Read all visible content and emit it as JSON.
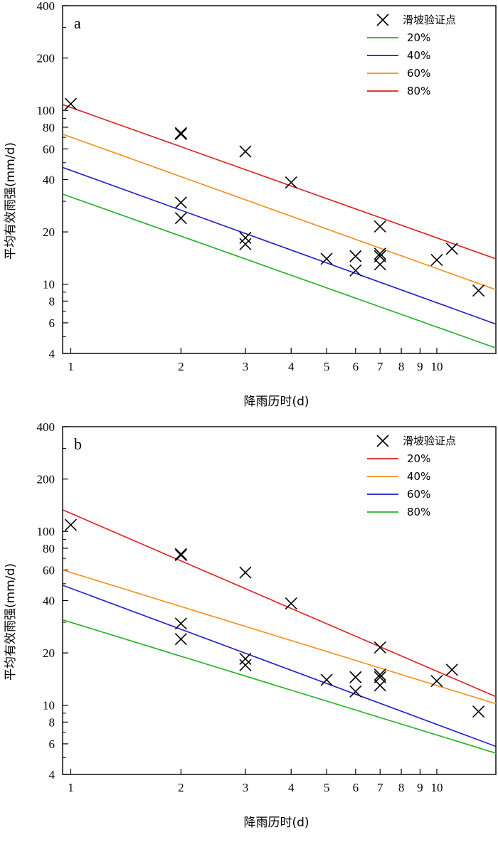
{
  "chart_data": [
    {
      "type": "line",
      "panel_label": "a",
      "xlabel": "降雨历时(d)",
      "ylabel": "平均有效雨强(mm/d)",
      "xscale": "log",
      "yscale": "log",
      "xlim": [
        0.95,
        14.5
      ],
      "ylim": [
        4,
        400
      ],
      "xticks": [
        1,
        2,
        3,
        4,
        5,
        6,
        7,
        8,
        9,
        10
      ],
      "xtick_labels": [
        "1",
        "2",
        "3",
        "4",
        "5",
        "6",
        "7",
        "8",
        "9",
        "10"
      ],
      "yticks": [
        4,
        6,
        8,
        10,
        20,
        40,
        60,
        80,
        100,
        200,
        400
      ],
      "ytick_labels": [
        "4",
        "6",
        "8",
        "10",
        "20",
        "40",
        "60",
        "80",
        "100",
        "200",
        "400"
      ],
      "legend_position": "top-right",
      "points": {
        "name": "滑坡验证点",
        "x": [
          1,
          2,
          2,
          2,
          2,
          3,
          3,
          3,
          4,
          5,
          6,
          6,
          7,
          7,
          7,
          7,
          10,
          11,
          13
        ],
        "y": [
          109,
          73,
          74,
          29.5,
          24,
          58,
          18.5,
          17,
          38.5,
          14,
          14.5,
          12,
          21.5,
          15,
          13,
          14.5,
          13.8,
          16,
          9.2
        ]
      },
      "series": [
        {
          "name": "20%",
          "color": "#22b022",
          "x": [
            0.95,
            14.5
          ],
          "y": [
            33,
            4.3
          ]
        },
        {
          "name": "40%",
          "color": "#1c1ccc",
          "x": [
            0.95,
            14.5
          ],
          "y": [
            47,
            5.9
          ]
        },
        {
          "name": "60%",
          "color": "#f58e1a",
          "x": [
            0.95,
            14.5
          ],
          "y": [
            73,
            9.3
          ]
        },
        {
          "name": "80%",
          "color": "#e01e1e",
          "x": [
            0.95,
            14.5
          ],
          "y": [
            108,
            14
          ]
        }
      ]
    },
    {
      "type": "line",
      "panel_label": "b",
      "xlabel": "降雨历时(d)",
      "ylabel": "平均有效雨强(mm/d)",
      "xscale": "log",
      "yscale": "log",
      "xlim": [
        0.95,
        14.5
      ],
      "ylim": [
        4,
        400
      ],
      "xticks": [
        1,
        2,
        3,
        4,
        5,
        6,
        7,
        8,
        9,
        10
      ],
      "xtick_labels": [
        "1",
        "2",
        "3",
        "4",
        "5",
        "6",
        "7",
        "8",
        "9",
        "10"
      ],
      "yticks": [
        4,
        6,
        8,
        10,
        20,
        40,
        60,
        80,
        100,
        200,
        400
      ],
      "ytick_labels": [
        "4",
        "6",
        "8",
        "10",
        "20",
        "40",
        "60",
        "80",
        "100",
        "200",
        "400"
      ],
      "legend_position": "top-right",
      "points": {
        "name": "滑坡验证点",
        "x": [
          1,
          2,
          2,
          2,
          2,
          3,
          3,
          3,
          4,
          5,
          6,
          6,
          7,
          7,
          7,
          7,
          10,
          11,
          13
        ],
        "y": [
          109,
          73,
          74,
          29.5,
          24,
          58,
          18.5,
          17,
          38.5,
          14,
          14.5,
          12,
          21.5,
          15,
          13,
          14.5,
          13.8,
          16,
          9.2
        ]
      },
      "series": [
        {
          "name": "20%",
          "color": "#e01e1e",
          "x": [
            0.95,
            14.5
          ],
          "y": [
            133,
            11.2
          ]
        },
        {
          "name": "40%",
          "color": "#f58e1a",
          "x": [
            0.95,
            14.5
          ],
          "y": [
            60,
            10.2
          ]
        },
        {
          "name": "60%",
          "color": "#1c1ccc",
          "x": [
            0.95,
            14.5
          ],
          "y": [
            49,
            5.8
          ]
        },
        {
          "name": "80%",
          "color": "#22b022",
          "x": [
            0.95,
            14.5
          ],
          "y": [
            31,
            5.3
          ]
        }
      ]
    }
  ]
}
